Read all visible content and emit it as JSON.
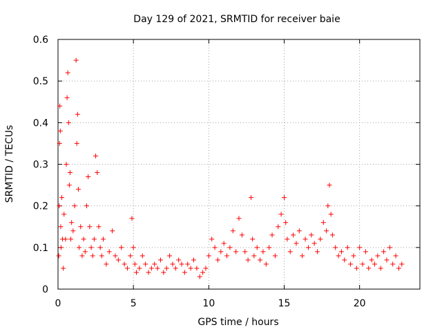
{
  "chart_data": {
    "type": "scatter",
    "title": "Day 129 of 2021, SRMTID for receiver baie",
    "xlabel": "GPS time / hours",
    "ylabel": "SRMTID / TECUs",
    "xlim": [
      0,
      24
    ],
    "ylim": [
      0,
      0.6
    ],
    "xticks": [
      0,
      5,
      10,
      15,
      20
    ],
    "xtick_labels": [
      "0",
      "5",
      "10",
      "15",
      "20"
    ],
    "yticks": [
      0,
      0.1,
      0.2,
      0.3,
      0.4,
      0.5,
      0.6
    ],
    "ytick_labels": [
      "0",
      "0.1",
      "0.2",
      "0.3",
      "0.4",
      "0.5",
      "0.6"
    ],
    "grid": true,
    "marker": "plus",
    "color": "#ff0000",
    "series": [
      {
        "name": "SRMTID",
        "x": [
          0.05,
          0.08,
          0.1,
          0.12,
          0.15,
          0.18,
          0.2,
          0.25,
          0.3,
          0.35,
          0.4,
          0.5,
          0.55,
          0.6,
          0.65,
          0.7,
          0.75,
          0.8,
          0.85,
          0.9,
          1.0,
          1.1,
          1.2,
          1.25,
          1.3,
          1.35,
          1.4,
          1.5,
          1.6,
          1.7,
          1.8,
          1.9,
          2.0,
          2.1,
          2.2,
          2.3,
          2.4,
          2.5,
          2.6,
          2.7,
          2.8,
          2.9,
          3.0,
          3.2,
          3.4,
          3.6,
          3.8,
          4.0,
          4.2,
          4.4,
          4.6,
          4.8,
          4.9,
          5.0,
          5.1,
          5.2,
          5.4,
          5.6,
          5.8,
          6.0,
          6.2,
          6.4,
          6.6,
          6.8,
          7.0,
          7.2,
          7.4,
          7.6,
          7.8,
          8.0,
          8.2,
          8.4,
          8.6,
          8.8,
          9.0,
          9.2,
          9.4,
          9.6,
          9.8,
          10.0,
          10.2,
          10.4,
          10.6,
          10.8,
          11.0,
          11.2,
          11.4,
          11.6,
          11.8,
          12.0,
          12.2,
          12.4,
          12.6,
          12.8,
          12.9,
          13.0,
          13.2,
          13.4,
          13.6,
          13.8,
          14.0,
          14.2,
          14.4,
          14.6,
          14.8,
          15.0,
          15.1,
          15.2,
          15.4,
          15.6,
          15.8,
          16.0,
          16.2,
          16.4,
          16.6,
          16.8,
          17.0,
          17.2,
          17.4,
          17.6,
          17.8,
          17.9,
          18.0,
          18.1,
          18.2,
          18.4,
          18.6,
          18.8,
          19.0,
          19.2,
          19.4,
          19.6,
          19.8,
          20.0,
          20.2,
          20.4,
          20.6,
          20.8,
          21.0,
          21.2,
          21.4,
          21.6,
          21.8,
          22.0,
          22.2,
          22.4,
          22.6,
          22.8
        ],
        "y": [
          0.08,
          0.2,
          0.35,
          0.44,
          0.38,
          0.15,
          0.1,
          0.22,
          0.12,
          0.05,
          0.18,
          0.12,
          0.3,
          0.46,
          0.52,
          0.4,
          0.25,
          0.28,
          0.12,
          0.16,
          0.14,
          0.2,
          0.55,
          0.35,
          0.42,
          0.24,
          0.1,
          0.15,
          0.08,
          0.12,
          0.09,
          0.2,
          0.27,
          0.15,
          0.1,
          0.08,
          0.12,
          0.32,
          0.28,
          0.15,
          0.1,
          0.08,
          0.12,
          0.06,
          0.09,
          0.14,
          0.08,
          0.07,
          0.1,
          0.06,
          0.05,
          0.08,
          0.17,
          0.1,
          0.06,
          0.04,
          0.05,
          0.08,
          0.06,
          0.04,
          0.05,
          0.06,
          0.05,
          0.07,
          0.04,
          0.05,
          0.08,
          0.06,
          0.05,
          0.07,
          0.06,
          0.04,
          0.06,
          0.05,
          0.07,
          0.05,
          0.03,
          0.04,
          0.05,
          0.08,
          0.12,
          0.1,
          0.07,
          0.09,
          0.11,
          0.08,
          0.1,
          0.14,
          0.09,
          0.17,
          0.13,
          0.09,
          0.07,
          0.22,
          0.12,
          0.08,
          0.1,
          0.07,
          0.09,
          0.06,
          0.1,
          0.13,
          0.08,
          0.15,
          0.18,
          0.22,
          0.16,
          0.12,
          0.09,
          0.13,
          0.11,
          0.14,
          0.08,
          0.12,
          0.1,
          0.13,
          0.11,
          0.09,
          0.12,
          0.16,
          0.14,
          0.2,
          0.25,
          0.18,
          0.13,
          0.1,
          0.08,
          0.09,
          0.07,
          0.1,
          0.06,
          0.08,
          0.05,
          0.1,
          0.06,
          0.09,
          0.05,
          0.07,
          0.06,
          0.08,
          0.05,
          0.09,
          0.07,
          0.1,
          0.06,
          0.08,
          0.05,
          0.06
        ]
      }
    ]
  }
}
